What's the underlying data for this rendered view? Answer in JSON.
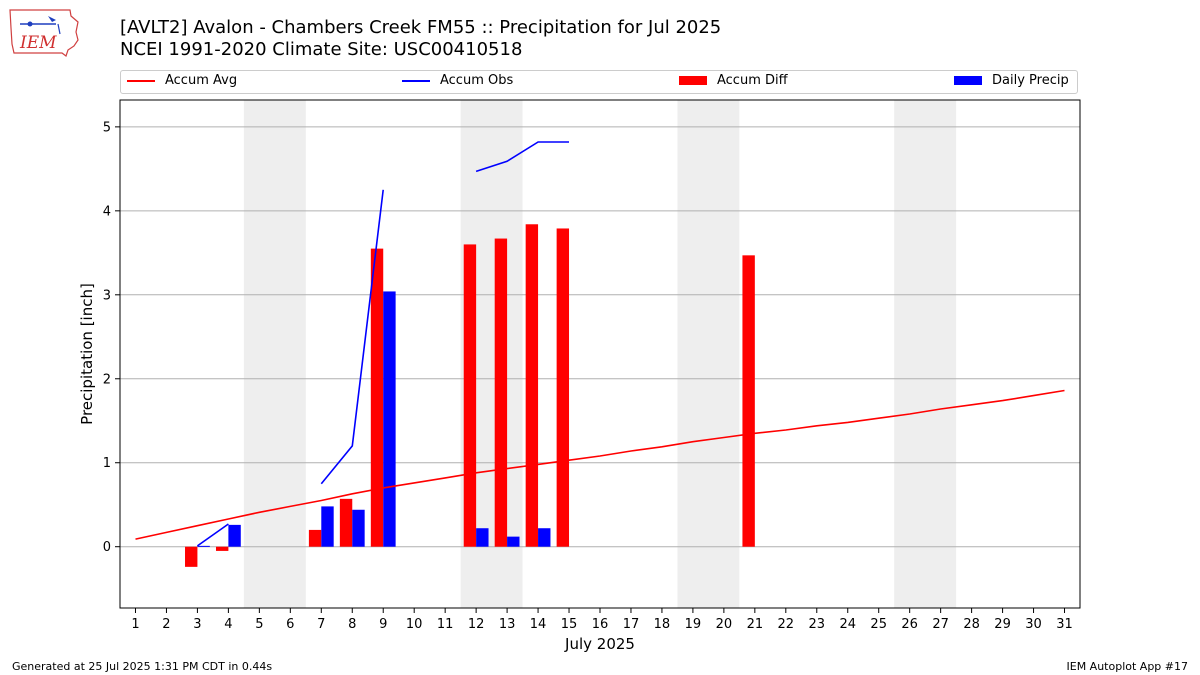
{
  "header": {
    "title_line1": "[AVLT2] Avalon - Chambers Creek FM55 :: Precipitation for Jul 2025",
    "title_line2": "NCEI 1991-2020 Climate Site: USC00410518",
    "logo_text": "IEM"
  },
  "legend": {
    "items": [
      {
        "label": "Accum Avg",
        "color": "#ff0000",
        "kind": "line"
      },
      {
        "label": "Accum Obs",
        "color": "#0000ff",
        "kind": "line"
      },
      {
        "label": "Accum Diff",
        "color": "#ff0000",
        "kind": "box"
      },
      {
        "label": "Daily Precip",
        "color": "#0000ff",
        "kind": "box"
      }
    ]
  },
  "footer": {
    "left": "Generated at 25 Jul 2025 1:31 PM CDT in 0.44s",
    "right": "IEM Autoplot App #17"
  },
  "chart_data": {
    "type": "bar",
    "xlabel": "July 2025",
    "ylabel": "Precipitation [inch]",
    "xlim": [
      0.5,
      31.5
    ],
    "ylim": [
      -0.73,
      5.32
    ],
    "yticks": [
      0,
      1,
      2,
      3,
      4,
      5
    ],
    "x": [
      1,
      2,
      3,
      4,
      5,
      6,
      7,
      8,
      9,
      10,
      11,
      12,
      13,
      14,
      15,
      16,
      17,
      18,
      19,
      20,
      21,
      22,
      23,
      24,
      25,
      26,
      27,
      28,
      29,
      30,
      31
    ],
    "grid": "y",
    "legend_position": "top",
    "weekend_shading": [
      [
        4.5,
        6.5
      ],
      [
        11.5,
        13.5
      ],
      [
        18.5,
        20.5
      ],
      [
        25.5,
        27.5
      ]
    ],
    "shading_color": "#eeeeee",
    "series": [
      {
        "name": "Accum Avg",
        "kind": "line",
        "color": "#ff0000",
        "values": [
          0.09,
          0.17,
          0.25,
          0.33,
          0.41,
          0.48,
          0.55,
          0.63,
          0.7,
          0.76,
          0.82,
          0.88,
          0.93,
          0.98,
          1.03,
          1.08,
          1.14,
          1.19,
          1.25,
          1.3,
          1.35,
          1.39,
          1.44,
          1.48,
          1.53,
          1.58,
          1.64,
          1.69,
          1.74,
          1.8,
          1.86
        ]
      },
      {
        "name": "Accum Obs",
        "kind": "line",
        "color": "#0000ff",
        "values": [
          null,
          null,
          0.01,
          0.27,
          null,
          null,
          0.75,
          1.2,
          4.25,
          null,
          null,
          4.47,
          4.59,
          4.82,
          4.82,
          null,
          null,
          null,
          null,
          null,
          null,
          null,
          null,
          null,
          null,
          null,
          null,
          null,
          null,
          null,
          null
        ]
      },
      {
        "name": "Accum Diff",
        "kind": "bar",
        "color": "#ff0000",
        "values": [
          null,
          null,
          -0.24,
          -0.05,
          null,
          null,
          0.2,
          0.57,
          3.55,
          null,
          null,
          3.6,
          3.67,
          3.84,
          3.79,
          null,
          null,
          null,
          null,
          null,
          3.47,
          null,
          null,
          null,
          null,
          null,
          null,
          null,
          null,
          null,
          null
        ]
      },
      {
        "name": "Daily Precip",
        "kind": "bar",
        "color": "#0000ff",
        "values": [
          null,
          null,
          0.01,
          0.26,
          null,
          null,
          0.48,
          0.44,
          3.04,
          null,
          null,
          0.22,
          0.12,
          0.22,
          null,
          null,
          null,
          null,
          null,
          null,
          null,
          null,
          null,
          null,
          null,
          null,
          null,
          null,
          null,
          null,
          null
        ]
      }
    ]
  }
}
